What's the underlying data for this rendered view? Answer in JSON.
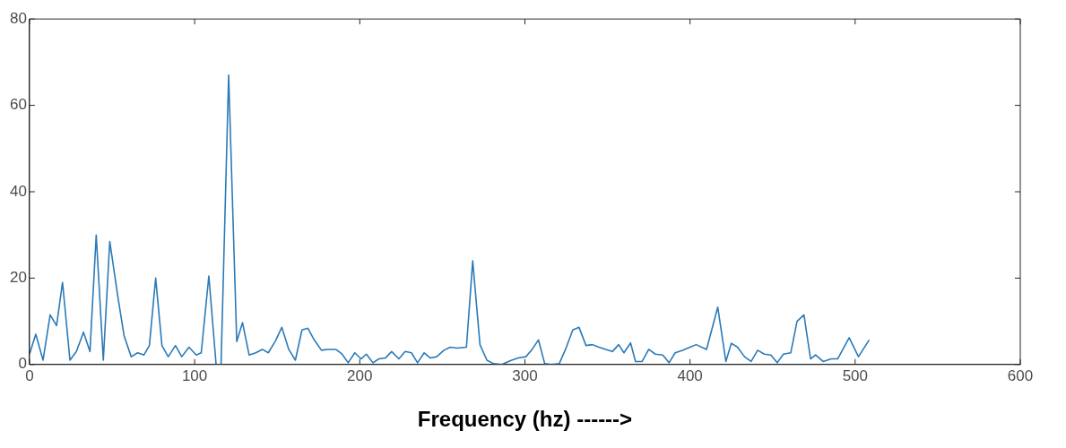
{
  "chart_data": {
    "type": "line",
    "xlabel": "Frequency (hz) ------>",
    "xlim": [
      0,
      600
    ],
    "xticks": [
      0,
      100,
      200,
      300,
      400,
      500,
      600
    ],
    "ylim": [
      0,
      80
    ],
    "yticks": [
      0,
      20,
      40,
      60,
      80
    ],
    "grid": false,
    "legend": false,
    "marker": "none",
    "line_style": "solid",
    "series": [
      {
        "color": "#2a7ab8",
        "x": [
          0,
          3.8,
          8.2,
          12.5,
          16.4,
          20,
          24.5,
          28.4,
          32.7,
          36.6,
          40.4,
          44.7,
          48.6,
          53.5,
          57.3,
          61.6,
          65.5,
          69.3,
          72.6,
          76.4,
          80.2,
          84,
          88.4,
          92.2,
          96.6,
          101,
          104,
          108.6,
          113,
          116,
          120.6,
          125.5,
          129,
          133,
          137,
          141,
          144.6,
          149,
          152.8,
          157,
          161,
          165,
          168.6,
          172.4,
          176.8,
          180.6,
          185.5,
          189.3,
          193,
          197,
          200.8,
          204,
          208,
          211.6,
          215.5,
          219.3,
          223.7,
          227.5,
          231.3,
          235,
          239,
          242.8,
          246.6,
          251,
          254.8,
          259,
          264.6,
          268.4,
          272.8,
          277,
          281,
          286,
          292,
          296,
          300.6,
          304.4,
          308.2,
          312,
          316,
          320.8,
          324.6,
          329,
          332.8,
          337,
          341,
          344.8,
          349,
          353,
          356.8,
          360,
          364,
          367,
          371,
          375,
          379,
          383.5,
          387.3,
          391,
          395.5,
          400,
          403.7,
          410,
          416.8,
          421.7,
          425,
          428.8,
          433,
          437,
          441,
          445,
          449,
          452.8,
          456.6,
          461,
          464.8,
          469,
          473,
          476,
          480.6,
          485.5,
          489.4,
          496.4,
          502,
          508.5
        ],
        "values": [
          2.4,
          7,
          1,
          11.5,
          9,
          19,
          1,
          3,
          7.5,
          3,
          30,
          1,
          28.5,
          15.7,
          6.6,
          1.8,
          2.7,
          2.2,
          4.4,
          20,
          4.4,
          1.8,
          4.4,
          1.8,
          4,
          2.2,
          2.7,
          20.5,
          0,
          0,
          67,
          5.3,
          9.7,
          2.2,
          2.7,
          3.5,
          2.7,
          5.5,
          8.6,
          3.5,
          1,
          8,
          8.4,
          5.7,
          3.3,
          3.5,
          3.5,
          2.4,
          0.4,
          2.7,
          1.3,
          2.4,
          0.4,
          1.3,
          1.5,
          3,
          1.3,
          3,
          2.7,
          0.4,
          2.7,
          1.5,
          1.8,
          3.3,
          4,
          3.8,
          4,
          24,
          4.6,
          1,
          0.2,
          0,
          1,
          1.5,
          1.8,
          3.5,
          5.7,
          0.2,
          0,
          0.2,
          3.5,
          8,
          8.6,
          4.4,
          4.6,
          4,
          3.5,
          3,
          4.6,
          2.7,
          5,
          0.7,
          0.7,
          3.5,
          2.4,
          2.2,
          0.4,
          2.7,
          3.3,
          4,
          4.6,
          3.5,
          13.3,
          0.7,
          4.9,
          4,
          1.8,
          0.7,
          3.3,
          2.4,
          2.2,
          0.4,
          2.4,
          2.7,
          10,
          11.5,
          1.3,
          2.2,
          0.7,
          1.3,
          1.3,
          6.2,
          1.8,
          5.7
        ]
      }
    ]
  }
}
